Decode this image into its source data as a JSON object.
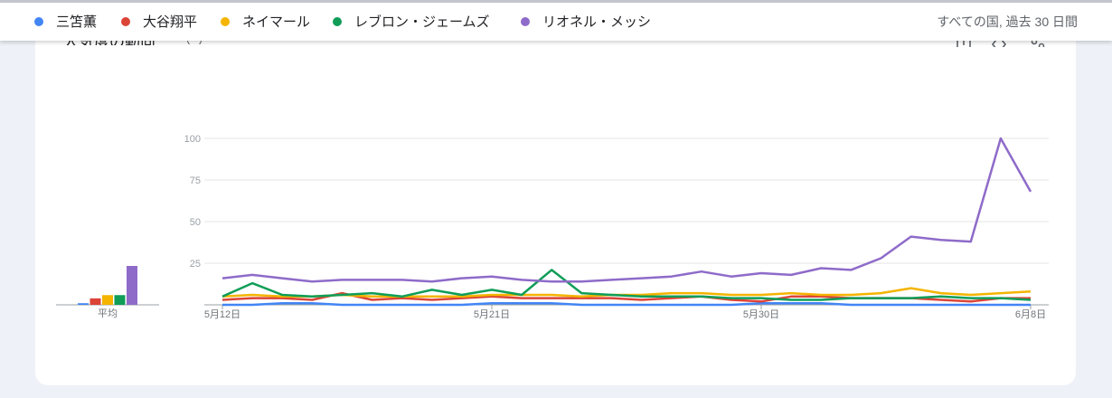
{
  "legend": {
    "items": [
      {
        "label": "三笘薫",
        "color": "#4285f4"
      },
      {
        "label": "大谷翔平",
        "color": "#db4437"
      },
      {
        "label": "ネイマール",
        "color": "#f4b400"
      },
      {
        "label": "レブロン・ジェームズ",
        "color": "#0f9d58"
      },
      {
        "label": "リオネル・メッシ",
        "color": "#8e6bc9"
      }
    ],
    "scope": "すべての国, 過去 30 日間"
  },
  "card": {
    "title": "人気度の動向"
  },
  "chart_data": [
    {
      "type": "bar",
      "categories": [
        "三笘薫",
        "大谷翔平",
        "ネイマール",
        "レブロン・ジェームズ",
        "リオネル・メッシ"
      ],
      "values": [
        1,
        4,
        6,
        6,
        24
      ],
      "xlabel": "平均",
      "colors": [
        "#4285f4",
        "#db4437",
        "#f4b400",
        "#0f9d58",
        "#8e6bc9"
      ]
    },
    {
      "type": "line",
      "x_ticks": [
        "5月12日",
        "5月21日",
        "5月30日",
        "6月8日"
      ],
      "x_count": 28,
      "ylim": [
        0,
        100
      ],
      "y_ticks": [
        25,
        50,
        75,
        100
      ],
      "grid": true,
      "series": [
        {
          "name": "三笘薫",
          "color": "#4285f4",
          "values": [
            0,
            0,
            1,
            1,
            0,
            0,
            0,
            0,
            0,
            1,
            1,
            1,
            0,
            0,
            0,
            0,
            0,
            0,
            1,
            1,
            1,
            0,
            0,
            0,
            0,
            0,
            0,
            0
          ]
        },
        {
          "name": "大谷翔平",
          "color": "#db4437",
          "values": [
            3,
            4,
            4,
            3,
            7,
            3,
            4,
            3,
            4,
            5,
            4,
            4,
            4,
            4,
            3,
            4,
            5,
            3,
            2,
            5,
            5,
            4,
            4,
            4,
            3,
            2,
            4,
            4
          ]
        },
        {
          "name": "ネイマール",
          "color": "#f4b400",
          "values": [
            5,
            6,
            5,
            5,
            6,
            5,
            5,
            5,
            5,
            6,
            6,
            6,
            5,
            6,
            6,
            7,
            7,
            6,
            6,
            7,
            6,
            6,
            7,
            10,
            7,
            6,
            7,
            8
          ]
        },
        {
          "name": "レブロン・ジェームズ",
          "color": "#0f9d58",
          "values": [
            5,
            13,
            6,
            5,
            6,
            7,
            5,
            9,
            6,
            9,
            6,
            21,
            7,
            6,
            5,
            5,
            5,
            4,
            4,
            3,
            3,
            4,
            4,
            4,
            5,
            4,
            4,
            3
          ]
        },
        {
          "name": "リオネル・メッシ",
          "color": "#8e6bc9",
          "values": [
            16,
            18,
            16,
            14,
            15,
            15,
            15,
            14,
            16,
            17,
            15,
            14,
            14,
            15,
            16,
            17,
            20,
            17,
            19,
            18,
            22,
            21,
            28,
            41,
            39,
            38,
            100,
            68
          ]
        }
      ]
    }
  ]
}
